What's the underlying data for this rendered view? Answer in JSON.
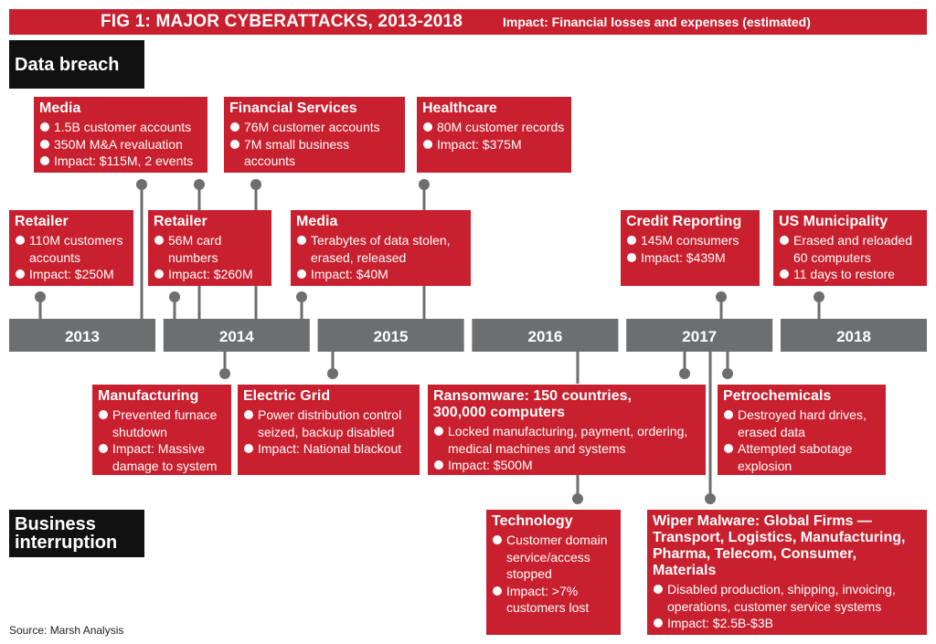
{
  "header": {
    "title": "FIG 1: MAJOR CYBERATTACKS, 2013-2018",
    "subtitle": "Impact: Financial losses and expenses (estimated)"
  },
  "categories": {
    "breach": "Data breach",
    "business": "Business interruption"
  },
  "years": [
    "2013",
    "2014",
    "2015",
    "2016",
    "2017",
    "2018"
  ],
  "breach_events": [
    {
      "title": "Media",
      "items": [
        "1.5B customer accounts",
        "350M M&A revaluation",
        "Impact: $115M, 2 events"
      ]
    },
    {
      "title": "Financial Services",
      "items": [
        "76M customer accounts",
        "7M small business accounts"
      ]
    },
    {
      "title": "Healthcare",
      "items": [
        "80M customer records",
        "Impact: $375M"
      ]
    },
    {
      "title": "Retailer",
      "items": [
        "110M customers accounts",
        "Impact: $250M"
      ]
    },
    {
      "title": "Retailer",
      "items": [
        "56M card numbers",
        "Impact: $260M"
      ]
    },
    {
      "title": "Media",
      "items": [
        "Terabytes of data stolen, erased, released",
        "Impact: $40M"
      ]
    },
    {
      "title": "Credit Reporting",
      "items": [
        "145M consumers",
        "Impact: $439M"
      ]
    },
    {
      "title": "US Municipality",
      "items": [
        "Erased and reloaded 60 computers",
        "11 days to restore"
      ]
    }
  ],
  "bi_events": [
    {
      "title": "Manufacturing",
      "items": [
        "Prevented furnace shutdown",
        "Impact: Massive damage to system"
      ]
    },
    {
      "title": "Electric Grid",
      "items": [
        "Power distribution control seized, backup disabled",
        "Impact: National blackout"
      ]
    },
    {
      "title": "Ransomware: 150 countries, 300,000 computers",
      "items": [
        "Locked manufacturing, payment, ordering, medical machines and systems",
        "Impact: $500M"
      ]
    },
    {
      "title": "Petrochemicals",
      "items": [
        "Destroyed hard drives, erased data",
        "Attempted sabotage explosion"
      ]
    },
    {
      "title": "Technology",
      "items": [
        "Customer domain service/access stopped",
        "Impact: >7% customers lost"
      ]
    },
    {
      "title": "Wiper Malware: Global Firms — Transport, Logistics, Manufacturing, Pharma, Telecom, Consumer, Materials",
      "items": [
        "Disabled production, shipping, invoicing, operations, customer service systems",
        "Impact: $2.5B-$3B"
      ]
    }
  ],
  "source": "Source: Marsh Analysis",
  "colors": {
    "accent": "#c8202e",
    "timeline": "#6d6e70",
    "label_bg": "#111111"
  }
}
